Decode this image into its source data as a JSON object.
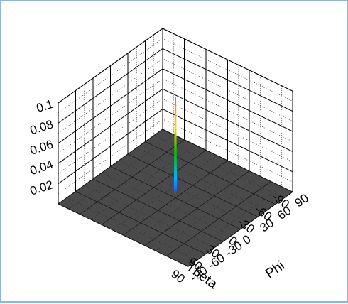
{
  "colors": {
    "frame_border": "#8fb6d6",
    "floor": "#4a4a4a",
    "grid": "#000000",
    "peak_gradient": [
      "#ff6a00",
      "#ffd800",
      "#00c000",
      "#00b0ff",
      "#3030ff"
    ]
  },
  "chart_data": {
    "type": "surface3d",
    "title": "",
    "xlabel": "Theta",
    "ylabel": "Phi",
    "zlabel": "",
    "x_ticks": [
      "90",
      "60",
      "30",
      "0",
      "-30",
      "-60",
      "-90"
    ],
    "y_ticks": [
      "-90",
      "-60",
      "-30",
      "0",
      "30",
      "60",
      "90"
    ],
    "z_ticks": [
      "0.02",
      "0.04",
      "0.06",
      "0.08",
      "0.1"
    ],
    "xlim": [
      -90,
      90
    ],
    "ylim": [
      -90,
      90
    ],
    "zlim": [
      0,
      0.1
    ],
    "grid": true,
    "surface": "flat near zero everywhere except a single narrow spike",
    "peak": {
      "theta": 0,
      "phi": 0,
      "z": 0.1
    }
  }
}
